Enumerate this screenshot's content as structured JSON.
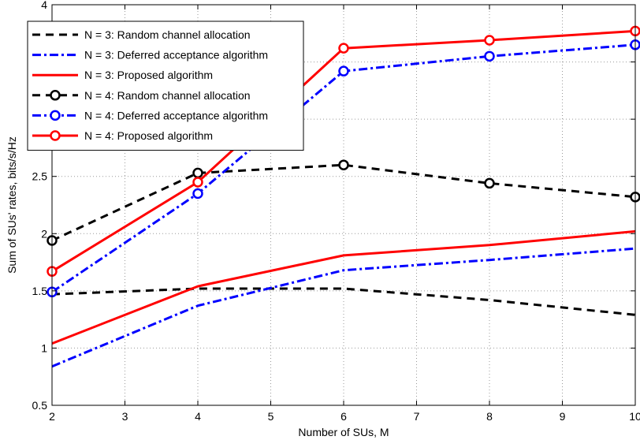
{
  "chart_data": {
    "type": "line",
    "title": "",
    "xlabel": "Number of SUs, M",
    "ylabel": "Sum of SUs' rates, bits/s/Hz",
    "xlim": [
      2,
      10
    ],
    "ylim": [
      0.5,
      4
    ],
    "xticks": [
      2,
      3,
      4,
      5,
      6,
      7,
      8,
      9,
      10
    ],
    "yticks": [
      0.5,
      1,
      1.5,
      2,
      2.5,
      3,
      3.5,
      4
    ],
    "ytick_labels": [
      "0.5",
      "1",
      "1.5",
      "2",
      "2.5",
      "",
      "",
      "4"
    ],
    "grid": true,
    "legend_position": "top-left",
    "series": [
      {
        "name": "N = 3: Random channel allocation",
        "x": [
          2,
          4,
          6,
          8,
          10
        ],
        "y": [
          1.47,
          1.52,
          1.52,
          1.42,
          1.29
        ],
        "color": "#000000",
        "style": "dashed",
        "marker": "none"
      },
      {
        "name": "N = 3: Deferred acceptance algorithm",
        "x": [
          2,
          4,
          6,
          8,
          10
        ],
        "y": [
          0.84,
          1.37,
          1.68,
          1.77,
          1.87
        ],
        "color": "#0000ff",
        "style": "dashdot",
        "marker": "none"
      },
      {
        "name": "N = 3: Proposed algorithm",
        "x": [
          2,
          4,
          6,
          8,
          10
        ],
        "y": [
          1.04,
          1.54,
          1.81,
          1.9,
          2.02
        ],
        "color": "#ff0000",
        "style": "solid",
        "marker": "none"
      },
      {
        "name": "N = 4: Random channel allocation",
        "x": [
          2,
          4,
          6,
          8,
          10
        ],
        "y": [
          1.94,
          2.53,
          2.6,
          2.44,
          2.32
        ],
        "color": "#000000",
        "style": "dashed",
        "marker": "circle"
      },
      {
        "name": "N = 4: Deferred acceptance algorithm",
        "x": [
          2,
          4,
          6,
          8,
          10
        ],
        "y": [
          1.49,
          2.35,
          3.42,
          3.55,
          3.65
        ],
        "color": "#0000ff",
        "style": "dashdot",
        "marker": "circle"
      },
      {
        "name": "N = 4: Proposed algorithm",
        "x": [
          2,
          4,
          6,
          8,
          10
        ],
        "y": [
          1.67,
          2.45,
          3.62,
          3.69,
          3.77
        ],
        "color": "#ff0000",
        "style": "solid",
        "marker": "circle"
      }
    ]
  }
}
